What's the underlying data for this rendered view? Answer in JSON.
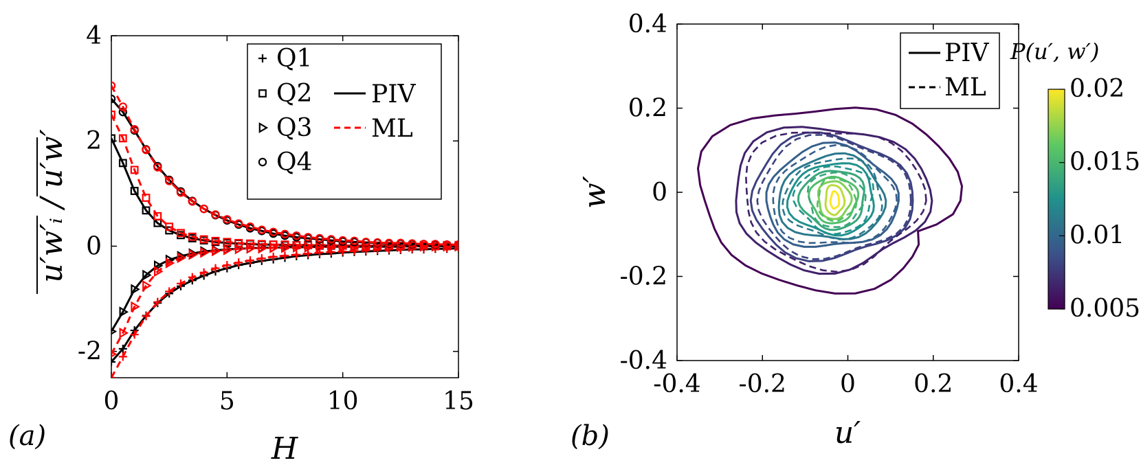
{
  "chart_data": [
    {
      "type": "line",
      "panel_label": "(a)",
      "xlabel": "H",
      "ylabel": "u′w′ᵢ / u′w′",
      "xlim": [
        0,
        15
      ],
      "ylim": [
        -2.5,
        4
      ],
      "xticks": [
        "0",
        "5",
        "10",
        "15"
      ],
      "yticks": [
        "-2",
        "0",
        "2",
        "4"
      ],
      "legend": {
        "quadrants": [
          {
            "label": "Q1",
            "marker": "plus"
          },
          {
            "label": "Q2",
            "marker": "square"
          },
          {
            "label": "Q3",
            "marker": "triangle-right"
          },
          {
            "label": "Q4",
            "marker": "circle"
          }
        ],
        "methods": [
          {
            "label": "PIV",
            "style": "solid",
            "color": "#000000"
          },
          {
            "label": "ML",
            "style": "dashed",
            "color": "#ff0000"
          }
        ]
      },
      "x": [
        0,
        0.5,
        1,
        1.5,
        2,
        2.5,
        3,
        3.5,
        4,
        4.5,
        5,
        5.5,
        6,
        6.5,
        7,
        7.5,
        8,
        8.5,
        9,
        9.5,
        10,
        10.5,
        11,
        11.5,
        12,
        12.5,
        13,
        13.5,
        14,
        14.5,
        15
      ],
      "series": [
        {
          "name": "Q1",
          "method": "PIV",
          "values": [
            -2.2,
            -1.95,
            -1.6,
            -1.32,
            -1.08,
            -0.9,
            -0.76,
            -0.65,
            -0.56,
            -0.48,
            -0.42,
            -0.36,
            -0.32,
            -0.28,
            -0.25,
            -0.22,
            -0.19,
            -0.17,
            -0.15,
            -0.14,
            -0.12,
            -0.11,
            -0.1,
            -0.09,
            -0.08,
            -0.07,
            -0.06,
            -0.06,
            -0.05,
            -0.05,
            -0.04
          ]
        },
        {
          "name": "Q1",
          "method": "ML",
          "values": [
            -2.5,
            -2.1,
            -1.68,
            -1.33,
            -1.06,
            -0.86,
            -0.71,
            -0.59,
            -0.5,
            -0.42,
            -0.36,
            -0.31,
            -0.27,
            -0.23,
            -0.2,
            -0.18,
            -0.16,
            -0.14,
            -0.12,
            -0.11,
            -0.1,
            -0.09,
            -0.08,
            -0.07,
            -0.06,
            -0.06,
            -0.05,
            -0.05,
            -0.04,
            -0.04,
            -0.03
          ]
        },
        {
          "name": "Q2",
          "method": "PIV",
          "values": [
            2.05,
            1.58,
            1.05,
            0.68,
            0.44,
            0.3,
            0.21,
            0.15,
            0.11,
            0.08,
            0.06,
            0.05,
            0.04,
            0.03,
            0.03,
            0.02,
            0.02,
            0.02,
            0.01,
            0.01,
            0.01,
            0.01,
            0.01,
            0.01,
            0.01,
            0.01,
            0.0,
            0.0,
            0.0,
            0.0,
            0.0
          ]
        },
        {
          "name": "Q2",
          "method": "ML",
          "values": [
            2.5,
            2.05,
            1.45,
            0.92,
            0.57,
            0.37,
            0.25,
            0.18,
            0.13,
            0.1,
            0.08,
            0.06,
            0.05,
            0.04,
            0.03,
            0.03,
            0.02,
            0.02,
            0.02,
            0.02,
            0.01,
            0.01,
            0.01,
            0.01,
            0.01,
            0.01,
            0.01,
            0.01,
            0.0,
            0.0,
            0.0
          ]
        },
        {
          "name": "Q3",
          "method": "PIV",
          "values": [
            -1.62,
            -1.25,
            -0.82,
            -0.55,
            -0.37,
            -0.26,
            -0.19,
            -0.14,
            -0.1,
            -0.08,
            -0.06,
            -0.05,
            -0.04,
            -0.03,
            -0.03,
            -0.02,
            -0.02,
            -0.02,
            -0.01,
            -0.01,
            -0.01,
            -0.01,
            -0.01,
            -0.01,
            -0.01,
            -0.01,
            0.0,
            0.0,
            0.0,
            0.0,
            0.0
          ]
        },
        {
          "name": "Q3",
          "method": "ML",
          "values": [
            -2.05,
            -1.65,
            -1.15,
            -0.75,
            -0.48,
            -0.32,
            -0.22,
            -0.16,
            -0.12,
            -0.09,
            -0.07,
            -0.05,
            -0.04,
            -0.04,
            -0.03,
            -0.03,
            -0.02,
            -0.02,
            -0.02,
            -0.01,
            -0.01,
            -0.01,
            -0.01,
            -0.01,
            -0.01,
            -0.01,
            -0.01,
            0.0,
            0.0,
            0.0,
            0.0
          ]
        },
        {
          "name": "Q4",
          "method": "PIV",
          "values": [
            2.8,
            2.55,
            2.2,
            1.84,
            1.52,
            1.26,
            1.04,
            0.86,
            0.71,
            0.59,
            0.49,
            0.41,
            0.34,
            0.29,
            0.24,
            0.2,
            0.17,
            0.15,
            0.13,
            0.11,
            0.09,
            0.08,
            0.07,
            0.06,
            0.05,
            0.05,
            0.04,
            0.04,
            0.03,
            0.03,
            0.03
          ]
        },
        {
          "name": "Q4",
          "method": "ML",
          "values": [
            3.05,
            2.65,
            2.22,
            1.83,
            1.5,
            1.24,
            1.02,
            0.85,
            0.71,
            0.6,
            0.51,
            0.43,
            0.37,
            0.31,
            0.27,
            0.23,
            0.2,
            0.17,
            0.15,
            0.13,
            0.11,
            0.1,
            0.08,
            0.07,
            0.06,
            0.06,
            0.05,
            0.04,
            0.04,
            0.03,
            0.03
          ]
        }
      ]
    },
    {
      "type": "contour",
      "panel_label": "(b)",
      "xlabel": "u′",
      "ylabel": "w′",
      "xlim": [
        -0.4,
        0.4
      ],
      "ylim": [
        -0.4,
        0.4
      ],
      "xticks": [
        "-0.4",
        "-0.2",
        "0",
        "0.2",
        "0.4"
      ],
      "yticks": [
        "-0.4",
        "-0.2",
        "0",
        "0.2",
        "0.4"
      ],
      "legend": [
        {
          "label": "PIV",
          "style": "solid"
        },
        {
          "label": "ML",
          "style": "dashed"
        }
      ],
      "colorbar": {
        "title": "P(u′, w′)",
        "ticks": [
          "0.005",
          "0.01",
          "0.015",
          "0.02"
        ],
        "range": [
          0.005,
          0.02
        ],
        "colormap": "viridis",
        "colors": [
          "#440154",
          "#3b528b",
          "#21918c",
          "#5ec962",
          "#fde725"
        ]
      },
      "center": [
        -0.03,
        -0.02
      ],
      "piv_contours": [
        {
          "level": 0.005,
          "rx": 0.3,
          "ry": 0.22
        },
        {
          "level": 0.0065,
          "rx": 0.23,
          "ry": 0.17
        },
        {
          "level": 0.008,
          "rx": 0.19,
          "ry": 0.145
        },
        {
          "level": 0.0095,
          "rx": 0.155,
          "ry": 0.12
        },
        {
          "level": 0.011,
          "rx": 0.125,
          "ry": 0.1
        },
        {
          "level": 0.0125,
          "rx": 0.1,
          "ry": 0.085
        },
        {
          "level": 0.014,
          "rx": 0.075,
          "ry": 0.07
        },
        {
          "level": 0.0155,
          "rx": 0.055,
          "ry": 0.055
        },
        {
          "level": 0.017,
          "rx": 0.038,
          "ry": 0.045
        },
        {
          "level": 0.0185,
          "rx": 0.022,
          "ry": 0.035
        },
        {
          "level": 0.02,
          "rx": 0.01,
          "ry": 0.02
        }
      ],
      "ml_contours": [
        {
          "level": 0.0065,
          "rx": 0.21,
          "ry": 0.165
        },
        {
          "level": 0.008,
          "rx": 0.18,
          "ry": 0.14
        },
        {
          "level": 0.0095,
          "rx": 0.145,
          "ry": 0.115
        },
        {
          "level": 0.011,
          "rx": 0.115,
          "ry": 0.095
        },
        {
          "level": 0.0125,
          "rx": 0.09,
          "ry": 0.08
        },
        {
          "level": 0.014,
          "rx": 0.065,
          "ry": 0.065
        },
        {
          "level": 0.0155,
          "rx": 0.045,
          "ry": 0.05
        }
      ]
    }
  ]
}
